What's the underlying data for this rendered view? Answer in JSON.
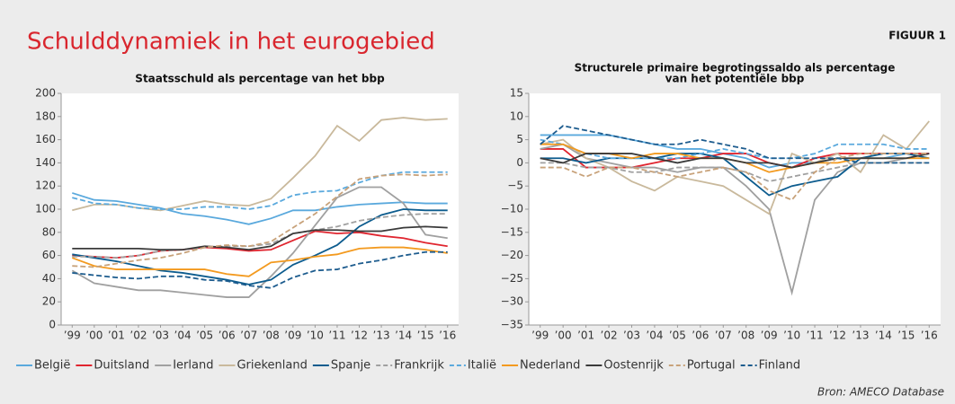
{
  "header": {
    "title": "Schulddynamiek in het eurogebied",
    "figure": "FIGUUR 1",
    "source": "Bron: AMECO Database"
  },
  "chart_data": [
    {
      "type": "line",
      "title": [
        "Staatsschuld als percentage van het bbp"
      ],
      "categories": [
        "’99",
        "’00",
        "’01",
        "’02",
        "’03",
        "’04",
        "’05",
        "’06",
        "’07",
        "’08",
        "’09",
        "’10",
        "’11",
        "’12",
        "’13",
        "’14",
        "’15",
        "’16"
      ],
      "ylim": [
        0,
        200
      ],
      "yticks": [
        0,
        20,
        40,
        60,
        80,
        100,
        120,
        140,
        160,
        180,
        200
      ],
      "grid": false,
      "series": [
        {
          "name": "België",
          "color": "#5aa9dd",
          "dash": false,
          "values": [
            114,
            108,
            107,
            104,
            101,
            96,
            94,
            91,
            87,
            92,
            99,
            99,
            102,
            104,
            105,
            106,
            105,
            105
          ]
        },
        {
          "name": "Duitsland",
          "color": "#e0252f",
          "dash": false,
          "values": [
            60,
            59,
            58,
            60,
            64,
            65,
            67,
            66,
            64,
            65,
            73,
            81,
            79,
            80,
            77,
            75,
            71,
            68
          ]
        },
        {
          "name": "Ierland",
          "color": "#a0a0a0",
          "dash": false,
          "values": [
            47,
            36,
            33,
            30,
            30,
            28,
            26,
            24,
            24,
            42,
            62,
            86,
            110,
            119,
            119,
            105,
            78,
            75
          ]
        },
        {
          "name": "Griekenland",
          "color": "#c9b99c",
          "dash": false,
          "values": [
            99,
            104,
            104,
            101,
            99,
            103,
            107,
            104,
            103,
            109,
            127,
            146,
            172,
            159,
            177,
            179,
            177,
            178
          ]
        },
        {
          "name": "Spanje",
          "color": "#0d5c8e",
          "dash": false,
          "values": [
            61,
            58,
            55,
            51,
            47,
            45,
            42,
            39,
            35,
            39,
            52,
            60,
            69,
            85,
            95,
            100,
            99,
            99
          ]
        },
        {
          "name": "Frankrijk",
          "color": "#a0a0a0",
          "dash": true,
          "values": [
            59,
            59,
            58,
            60,
            64,
            65,
            67,
            68,
            68,
            70,
            79,
            82,
            85,
            90,
            93,
            95,
            96,
            96
          ]
        },
        {
          "name": "Italië",
          "color": "#5aa9dd",
          "dash": true,
          "values": [
            110,
            105,
            104,
            101,
            100,
            100,
            102,
            102,
            100,
            103,
            112,
            115,
            116,
            123,
            129,
            132,
            132,
            132
          ]
        },
        {
          "name": "Nederland",
          "color": "#f39a1f",
          "dash": false,
          "values": [
            58,
            51,
            48,
            48,
            48,
            48,
            48,
            44,
            42,
            54,
            56,
            59,
            61,
            66,
            67,
            67,
            65,
            62
          ]
        },
        {
          "name": "Oostenrijk",
          "color": "#3a3a3a",
          "dash": false,
          "values": [
            66,
            66,
            66,
            66,
            65,
            65,
            68,
            67,
            65,
            68,
            79,
            82,
            82,
            81,
            81,
            84,
            85,
            84
          ]
        },
        {
          "name": "Portugal",
          "color": "#c8a27a",
          "dash": true,
          "values": [
            51,
            50,
            53,
            56,
            58,
            62,
            67,
            69,
            68,
            72,
            84,
            96,
            111,
            126,
            129,
            130,
            129,
            130
          ]
        },
        {
          "name": "Finland",
          "color": "#1d5c8e",
          "dash": true,
          "values": [
            45,
            43,
            41,
            40,
            42,
            42,
            39,
            38,
            34,
            32,
            41,
            47,
            48,
            53,
            56,
            60,
            63,
            63
          ]
        }
      ]
    },
    {
      "type": "line",
      "title": [
        "Structurele primaire begrotingssaldo als percentage",
        "van het potentiële bbp"
      ],
      "categories": [
        "’99",
        "’00",
        "’01",
        "’02",
        "’03",
        "’04",
        "’05",
        "’06",
        "’07",
        "’08",
        "’09",
        "’10",
        "’11",
        "’12",
        "’13",
        "’14",
        "’15",
        "’16"
      ],
      "ylim": [
        -35,
        15
      ],
      "yticks": [
        {
          "value": -35,
          "label": "−35"
        },
        {
          "value": -30,
          "label": "−30"
        },
        {
          "value": -25,
          "label": "−25"
        },
        {
          "value": -20,
          "label": "−20"
        },
        {
          "value": -15,
          "label": "−15"
        },
        {
          "value": -10,
          "label": "−10"
        },
        {
          "value": -5,
          "label": "−5"
        },
        0,
        5,
        10,
        15
      ],
      "grid": false,
      "series": [
        {
          "color": "#5aa9dd",
          "dash": false,
          "values": [
            6,
            6,
            6,
            6,
            5,
            4,
            3,
            3,
            2,
            1,
            -1,
            0,
            0,
            1,
            1,
            1,
            2,
            2
          ]
        },
        {
          "color": "#e0252f",
          "dash": false,
          "values": [
            3,
            3,
            -1,
            -1,
            -1,
            0,
            1,
            1,
            2,
            2,
            0,
            -1,
            1,
            2,
            2,
            2,
            2,
            2
          ]
        },
        {
          "color": "#a0a0a0",
          "dash": false,
          "values": [
            3,
            4,
            1,
            0,
            -1,
            -1,
            -2,
            -1,
            -1,
            -5,
            -10,
            -28,
            -8,
            -2,
            0,
            0,
            1,
            1
          ]
        },
        {
          "color": "#c9b99c",
          "dash": false,
          "values": [
            4,
            5,
            1,
            -1,
            -4,
            -6,
            -3,
            -4,
            -5,
            -8,
            -11,
            2,
            0,
            2,
            -2,
            6,
            3,
            9
          ]
        },
        {
          "color": "#0d5c8e",
          "dash": false,
          "values": [
            1,
            1,
            0,
            1,
            1,
            1,
            2,
            2,
            1,
            -3,
            -7,
            -5,
            -4,
            -3,
            1,
            2,
            2,
            1
          ]
        },
        {
          "color": "#a0a0a0",
          "dash": true,
          "values": [
            0,
            0,
            -1,
            -1,
            -2,
            -2,
            -1,
            -1,
            -1,
            -2,
            -4,
            -3,
            -2,
            -1,
            0,
            0,
            0,
            0
          ]
        },
        {
          "color": "#5aa9dd",
          "dash": true,
          "values": [
            5,
            4,
            2,
            1,
            1,
            1,
            1,
            2,
            3,
            2,
            1,
            1,
            2,
            4,
            4,
            4,
            3,
            3
          ]
        },
        {
          "color": "#f39a1f",
          "dash": false,
          "values": [
            4,
            4,
            2,
            2,
            1,
            2,
            2,
            1,
            1,
            0,
            -2,
            -1,
            0,
            0,
            1,
            1,
            1,
            1
          ]
        },
        {
          "color": "#3a3a3a",
          "dash": false,
          "values": [
            1,
            0,
            2,
            2,
            2,
            1,
            0,
            1,
            1,
            0,
            0,
            -1,
            0,
            1,
            1,
            1,
            1,
            2
          ]
        },
        {
          "color": "#c8a27a",
          "dash": true,
          "values": [
            -1,
            -1,
            -3,
            -1,
            -1,
            -2,
            -3,
            -2,
            -1,
            -2,
            -6,
            -8,
            -2,
            1,
            2,
            2,
            2,
            2
          ]
        },
        {
          "color": "#1d5c8e",
          "dash": true,
          "values": [
            4,
            8,
            7,
            6,
            5,
            4,
            4,
            5,
            4,
            3,
            1,
            1,
            1,
            1,
            0,
            0,
            0,
            0
          ]
        }
      ]
    }
  ]
}
